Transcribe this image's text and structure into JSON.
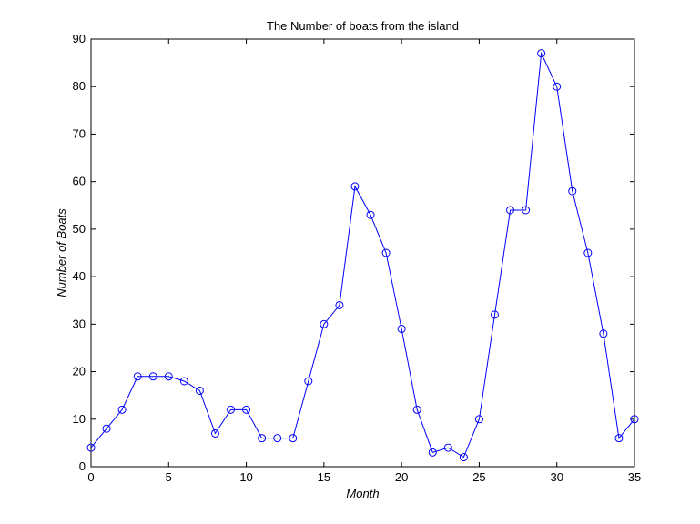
{
  "chart_data": {
    "type": "line",
    "title": "The Number of boats from the island",
    "xlabel": "Month",
    "ylabel": "Number of Boats",
    "xlim": [
      0,
      35
    ],
    "ylim": [
      0,
      90
    ],
    "xticks": [
      0,
      5,
      10,
      15,
      20,
      25,
      30,
      35
    ],
    "yticks": [
      0,
      10,
      20,
      30,
      40,
      50,
      60,
      70,
      80,
      90
    ],
    "grid": false,
    "marker": "circle",
    "series": [
      {
        "color": "#0000ff",
        "x": [
          0,
          1,
          2,
          3,
          4,
          5,
          6,
          7,
          8,
          9,
          10,
          11,
          12,
          13,
          14,
          15,
          16,
          17,
          18,
          19,
          20,
          21,
          22,
          23,
          24,
          25,
          26,
          27,
          28,
          29,
          30,
          31,
          32,
          33,
          34,
          35
        ],
        "values": [
          4,
          8,
          12,
          19,
          19,
          19,
          18,
          16,
          7,
          12,
          12,
          6,
          6,
          6,
          18,
          30,
          34,
          59,
          53,
          45,
          29,
          12,
          3,
          4,
          2,
          10,
          32,
          54,
          54,
          87,
          80,
          58,
          45,
          28,
          6,
          10
        ]
      }
    ]
  }
}
